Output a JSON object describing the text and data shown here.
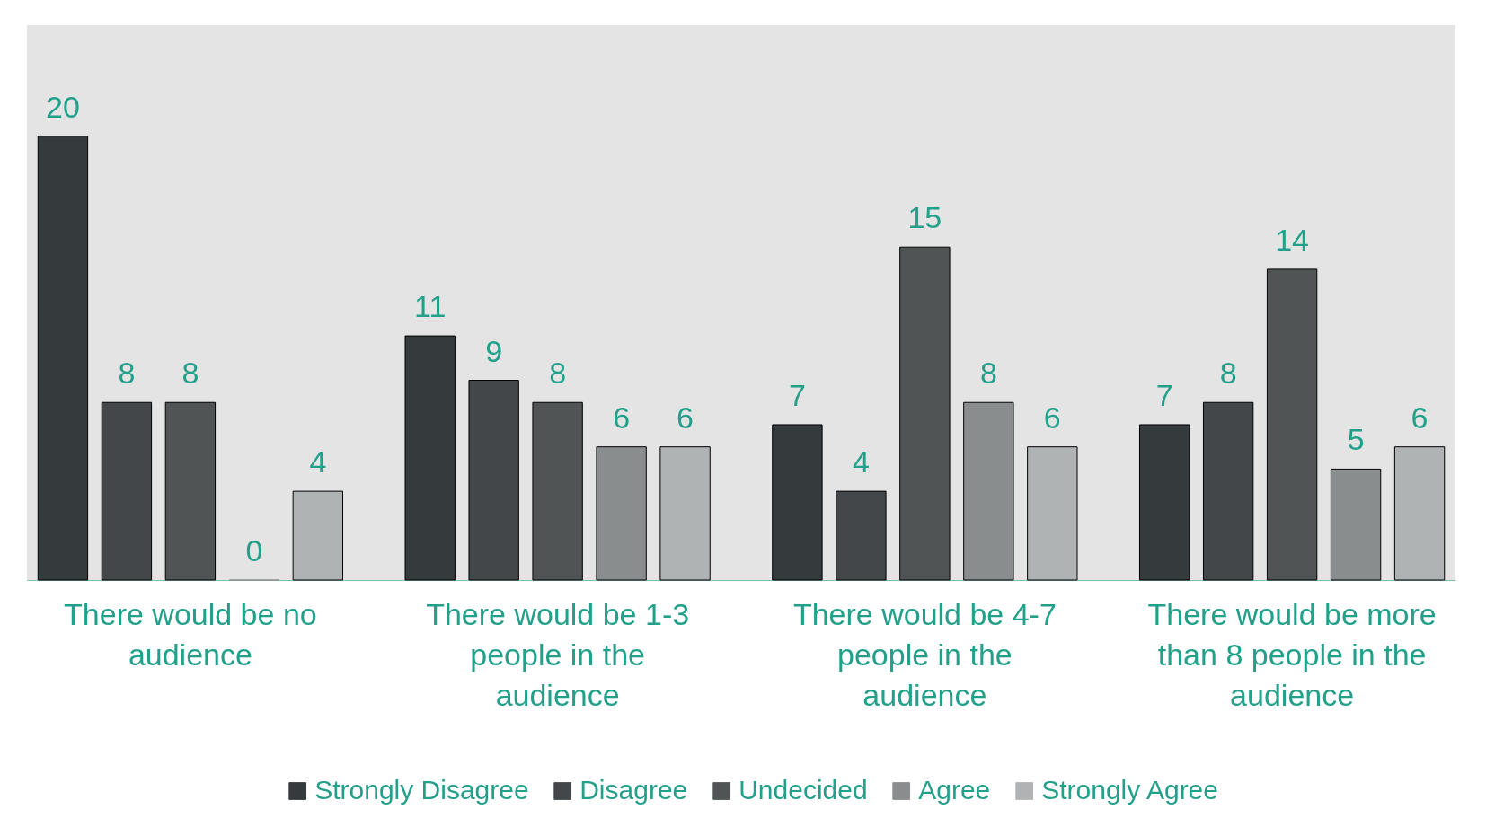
{
  "chart_data": {
    "type": "bar",
    "categories": [
      "There would be no audience",
      "There would be 1-3 people in the audience",
      "There would be 4-7 people in the audience",
      "There would be more than 8 people in the audience"
    ],
    "series": [
      {
        "name": "Strongly Disagree",
        "color": "#353a3d",
        "values": [
          20,
          11,
          7,
          7
        ]
      },
      {
        "name": "Disagree",
        "color": "#434749",
        "values": [
          8,
          9,
          4,
          8
        ]
      },
      {
        "name": "Undecided",
        "color": "#505455",
        "values": [
          8,
          8,
          15,
          14
        ]
      },
      {
        "name": "Agree",
        "color": "#8a8d8e",
        "values": [
          0,
          6,
          8,
          5
        ]
      },
      {
        "name": "Strongly Agree",
        "color": "#b0b3b4",
        "values": [
          4,
          6,
          6,
          6
        ]
      }
    ],
    "ylim": [
      0,
      25
    ],
    "data_labels": true,
    "legend": "bottom",
    "grid": false,
    "tick_labels": "x"
  }
}
